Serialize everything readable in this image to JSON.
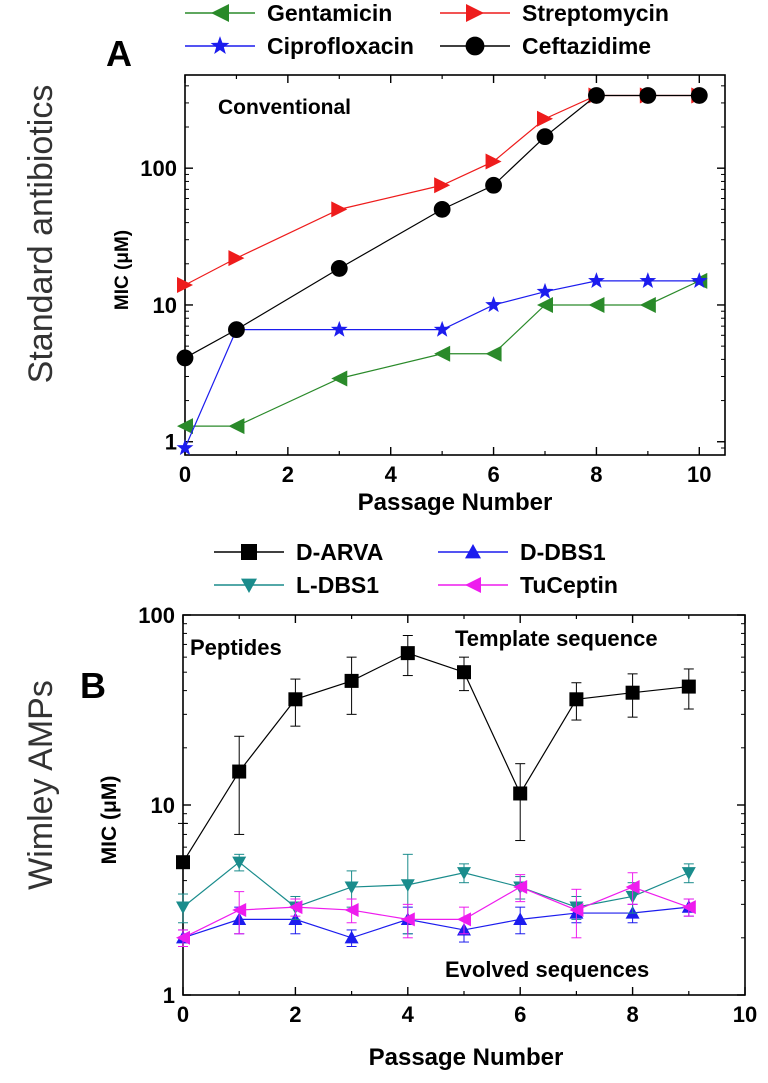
{
  "chart_data": [
    {
      "type": "line",
      "panel_letter": "A",
      "side_label": "Standard antibiotics",
      "annotation": "Conventional",
      "xlabel": "Passage Number",
      "ylabel": "MIC (μM)",
      "xlim": [
        0,
        10.5
      ],
      "ylim": [
        0.8,
        480
      ],
      "yscale": "log",
      "x_ticks": [
        0,
        2,
        4,
        6,
        8,
        10
      ],
      "x_tick_labels": [
        "0",
        "2",
        "4",
        "6",
        "8",
        "10"
      ],
      "y_ticks": [
        1,
        10,
        100
      ],
      "y_tick_labels": [
        "1",
        "10",
        "100"
      ],
      "legend_position": "top",
      "series": [
        {
          "name": "Gentamicin",
          "color": "#2a8a2a",
          "marker": "triangle-left",
          "x": [
            0,
            1,
            3,
            5,
            6,
            7,
            8,
            9,
            10
          ],
          "y": [
            1.3,
            1.3,
            2.9,
            4.4,
            4.4,
            10,
            10,
            10,
            15
          ]
        },
        {
          "name": "Streptomycin",
          "color": "#ee1c1c",
          "marker": "triangle-right",
          "x": [
            0,
            1,
            3,
            5,
            6,
            7,
            8,
            9,
            10
          ],
          "y": [
            14,
            22,
            50,
            75,
            112,
            230,
            340,
            340,
            340
          ]
        },
        {
          "name": "Ciprofloxacin",
          "color": "#1c1cee",
          "marker": "star",
          "x": [
            0,
            1,
            3,
            5,
            6,
            7,
            8,
            9,
            10
          ],
          "y": [
            0.9,
            6.6,
            6.6,
            6.6,
            10,
            12.5,
            15,
            15,
            15
          ]
        },
        {
          "name": "Ceftazidime",
          "color": "#000000",
          "marker": "circle",
          "x": [
            0,
            1,
            3,
            5,
            6,
            7,
            8,
            9,
            10
          ],
          "y": [
            4.1,
            6.6,
            18.5,
            50,
            75,
            170,
            340,
            340,
            340
          ]
        }
      ]
    },
    {
      "type": "line",
      "panel_letter": "B",
      "side_label": "Wimley AMPs",
      "annotations": [
        "Peptides",
        "Template sequence",
        "Evolved sequences"
      ],
      "xlabel": "Passage Number",
      "ylabel": "MIC (μM)",
      "xlim": [
        0,
        10
      ],
      "ylim": [
        1,
        100
      ],
      "yscale": "log",
      "x_ticks": [
        0,
        2,
        4,
        6,
        8,
        10
      ],
      "x_tick_labels": [
        "0",
        "2",
        "4",
        "6",
        "8",
        "10"
      ],
      "y_ticks": [
        1,
        10,
        100
      ],
      "y_tick_labels": [
        "1",
        "10",
        "100"
      ],
      "legend_position": "top",
      "series": [
        {
          "name": "D-ARVA",
          "color": "#000000",
          "marker": "square",
          "x": [
            0,
            1,
            2,
            3,
            4,
            5,
            6,
            7,
            8,
            9
          ],
          "y": [
            5,
            15,
            36,
            45,
            63,
            50,
            11.5,
            36,
            39,
            42
          ],
          "err": [
            3,
            8,
            10,
            15,
            15,
            10,
            5,
            8,
            10,
            10
          ]
        },
        {
          "name": "D-DBS1",
          "color": "#1c1cee",
          "marker": "triangle-up",
          "x": [
            0,
            1,
            2,
            3,
            4,
            5,
            6,
            7,
            8,
            9
          ],
          "y": [
            2.0,
            2.5,
            2.5,
            2.0,
            2.5,
            2.2,
            2.5,
            2.7,
            2.7,
            2.9
          ],
          "err": [
            0.2,
            0.4,
            0.4,
            0.2,
            0.4,
            0.3,
            0.4,
            0.3,
            0.3,
            0.3
          ]
        },
        {
          "name": "L-DBS1",
          "color": "#1a8c8c",
          "marker": "triangle-down",
          "x": [
            0,
            1,
            2,
            3,
            4,
            5,
            6,
            7,
            8,
            9
          ],
          "y": [
            2.9,
            5.0,
            2.9,
            3.7,
            3.8,
            4.4,
            3.7,
            2.9,
            3.3,
            4.4
          ],
          "err": [
            0.5,
            0.5,
            0.4,
            0.8,
            1.7,
            0.5,
            0.5,
            0.4,
            0.6,
            0.5
          ]
        },
        {
          "name": "TuCeptin",
          "color": "#ee1cee",
          "marker": "triangle-left",
          "x": [
            0,
            1,
            2,
            3,
            4,
            5,
            6,
            7,
            8,
            9
          ],
          "y": [
            2.0,
            2.8,
            2.9,
            2.8,
            2.5,
            2.5,
            3.7,
            2.8,
            3.7,
            2.9
          ],
          "err": [
            0.2,
            0.7,
            0.3,
            0.4,
            0.5,
            0.4,
            0.6,
            0.8,
            0.7,
            0.3
          ]
        }
      ]
    }
  ]
}
